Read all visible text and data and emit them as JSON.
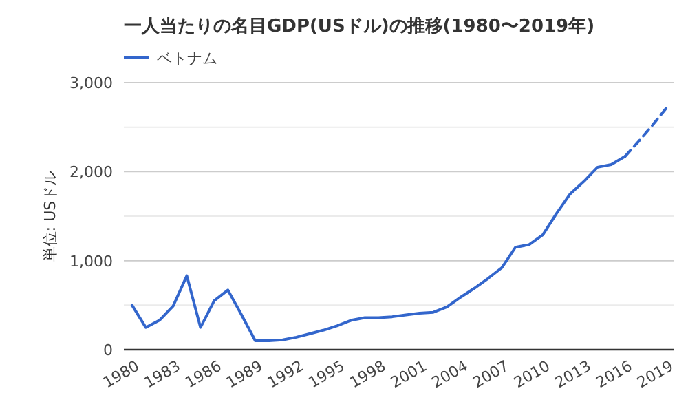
{
  "chart_data": {
    "type": "line",
    "title": "一人当たりの名目GDP(USドル)の推移(1980〜2019年)",
    "ylabel": "単位: USドル",
    "x": [
      1980,
      1981,
      1982,
      1983,
      1984,
      1985,
      1986,
      1987,
      1988,
      1989,
      1990,
      1991,
      1992,
      1993,
      1994,
      1995,
      1996,
      1997,
      1998,
      1999,
      2000,
      2001,
      2002,
      2003,
      2004,
      2005,
      2006,
      2007,
      2008,
      2009,
      2010,
      2011,
      2012,
      2013,
      2014,
      2015,
      2016,
      2017,
      2018,
      2019
    ],
    "series": [
      {
        "name": "ベトナム",
        "color": "#3366cc",
        "line_style": "solid",
        "values": [
          500,
          250,
          330,
          490,
          830,
          250,
          550,
          670,
          390,
          100,
          100,
          110,
          140,
          180,
          220,
          270,
          330,
          360,
          360,
          370,
          390,
          410,
          420,
          480,
          590,
          690,
          800,
          920,
          1150,
          1180,
          1290,
          1530,
          1750,
          1890,
          2050,
          2080,
          2170,
          null,
          null,
          null
        ]
      },
      {
        "color": "#3366cc",
        "line_style": "dashed",
        "values": [
          null,
          null,
          null,
          null,
          null,
          null,
          null,
          null,
          null,
          null,
          null,
          null,
          null,
          null,
          null,
          null,
          null,
          null,
          null,
          null,
          null,
          null,
          null,
          null,
          null,
          null,
          null,
          null,
          null,
          null,
          null,
          null,
          null,
          null,
          null,
          null,
          2170,
          2340,
          2520,
          2710
        ]
      }
    ],
    "xlim": [
      1979.4,
      2019.6
    ],
    "xticks": [
      1980,
      1983,
      1986,
      1989,
      1992,
      1995,
      1998,
      2001,
      2004,
      2007,
      2010,
      2013,
      2016,
      2019
    ],
    "ylim": [
      0,
      3000
    ],
    "yticks": [
      0,
      {
        "value": 500,
        "label": null
      },
      {
        "value": 1000,
        "label": "1,000"
      },
      {
        "value": 1500,
        "label": null
      },
      {
        "value": 2000,
        "label": "2,000"
      },
      {
        "value": 2500,
        "label": null
      },
      {
        "value": 3000,
        "label": "3,000"
      }
    ],
    "grid": "y",
    "legend": "top left"
  }
}
